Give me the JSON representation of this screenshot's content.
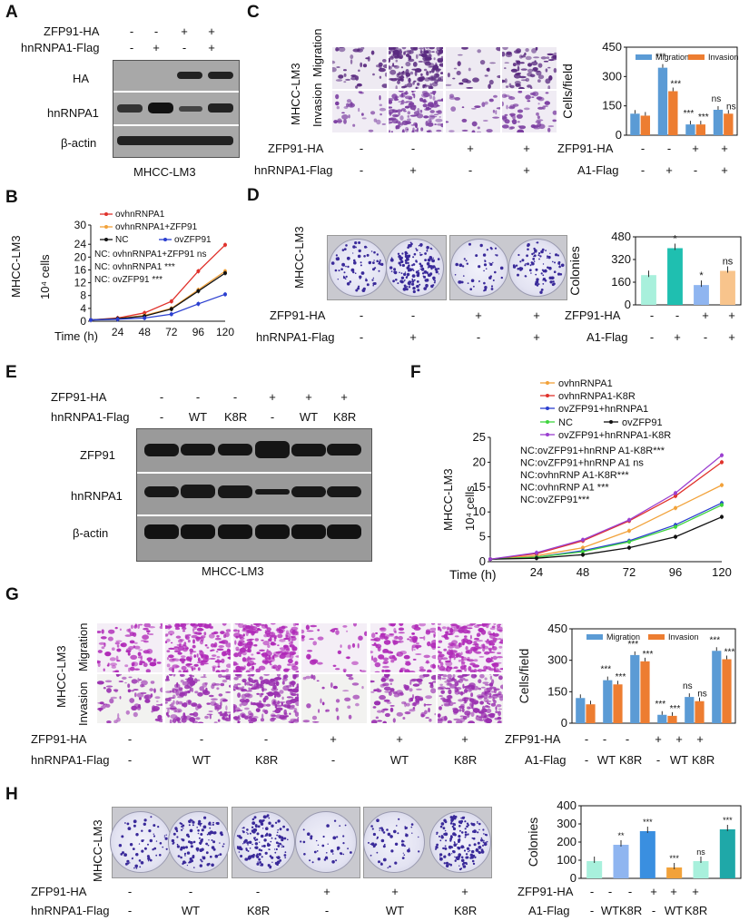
{
  "panels": {
    "A": {
      "label": "A",
      "rows": [
        "ZFP91-HA",
        "hnRNPA1-Flag"
      ],
      "zfp91_signs": [
        "-",
        "-",
        "+",
        "+"
      ],
      "a1_signs": [
        "-",
        "+",
        "-",
        "+"
      ],
      "bands": [
        "HA",
        "hnRNPA1",
        "β-actin"
      ],
      "cell_line": "MHCC-LM3"
    },
    "B": {
      "label": "B",
      "cell_line": "MHCC-LM3",
      "ylabel": "10⁴ cells",
      "xlabel_prefix": "Time (h)",
      "legend": [
        "ovhnRNPA1",
        "ovhnRNPA1+ZFP91",
        "NC",
        "ovZFP91"
      ],
      "stats": [
        "NC: ovhnRNPA1+ZFP91 ns",
        "NC: ovhnRNPA1 ***",
        "NC: ovZFP91 ***"
      ]
    },
    "C": {
      "label": "C",
      "cell_line": "MHCC-LM3",
      "row_labels": [
        "Migration",
        "Invasion"
      ],
      "rows": [
        "ZFP91-HA",
        "hnRNPA1-Flag"
      ],
      "zfp91_signs": [
        "-",
        "-",
        "+",
        "+"
      ],
      "a1_signs": [
        "-",
        "+",
        "-",
        "+"
      ],
      "chart_rows": [
        "ZFP91-HA",
        "A1-Flag"
      ],
      "chart_zfp91_signs": [
        "-",
        "-",
        "+",
        "+"
      ],
      "chart_a1_signs": [
        "-",
        "+",
        "-",
        "+"
      ]
    },
    "D": {
      "label": "D",
      "cell_line": "MHCC-LM3",
      "rows": [
        "ZFP91-HA",
        "hnRNPA1-Flag"
      ],
      "zfp91_signs": [
        "-",
        "-",
        "+",
        "+"
      ],
      "a1_signs": [
        "-",
        "+",
        "-",
        "+"
      ],
      "chart_rows": [
        "ZFP91-HA",
        "A1-Flag"
      ],
      "chart_zfp91_signs": [
        "-",
        "-",
        "+",
        "+"
      ],
      "chart_a1_signs": [
        "-",
        "+",
        "-",
        "+"
      ]
    },
    "E": {
      "label": "E",
      "rows": [
        "ZFP91-HA",
        "hnRNPA1-Flag"
      ],
      "zfp91_signs": [
        "-",
        "-",
        "-",
        "+",
        "+",
        "+"
      ],
      "a1_signs": [
        "-",
        "WT",
        "K8R",
        "-",
        "WT",
        "K8R"
      ],
      "bands": [
        "ZFP91",
        "hnRNPA1",
        "β-actin"
      ],
      "cell_line": "MHCC-LM3"
    },
    "F": {
      "label": "F",
      "cell_line": "MHCC-LM3",
      "ylabel": "10⁴ cells",
      "legend": [
        "ovhnRNPA1",
        "ovhnRNPA1-K8R",
        "ovZFP91+hnRNPA1",
        "NC",
        "ovZFP91",
        "ovZFP91+hnRNPA1-K8R"
      ],
      "stats": [
        "NC:ovZFP91+hnRNP A1-K8R***",
        "NC:ovZFP91+hnRNP A1 ns",
        "NC:ovhnRNP A1-K8R***",
        "NC:ovhnRNP A1 ***",
        "NC:ovZFP91***"
      ]
    },
    "G": {
      "label": "G",
      "cell_line": "MHCC-LM3",
      "row_labels": [
        "Migration",
        "Invasion"
      ],
      "rows": [
        "ZFP91-HA",
        "hnRNPA1-Flag"
      ],
      "zfp91_signs": [
        "-",
        "-",
        "-",
        "+",
        "+",
        "+"
      ],
      "a1_signs": [
        "-",
        "WT",
        "K8R",
        "-",
        "WT",
        "K8R"
      ],
      "chart_rows": [
        "ZFP91-HA",
        "A1-Flag"
      ],
      "chart_zfp91_signs": [
        "-",
        "-",
        "-",
        "+",
        "+",
        "+"
      ],
      "chart_a1_signs": [
        "-",
        "WT",
        "K8R",
        "-",
        "WT",
        "K8R"
      ]
    },
    "H": {
      "label": "H",
      "cell_line": "MHCC-LM3",
      "rows": [
        "ZFP91-HA",
        "hnRNPA1-Flag"
      ],
      "zfp91_signs": [
        "-",
        "-",
        "-",
        "+",
        "+",
        "+"
      ],
      "a1_signs": [
        "-",
        "WT",
        "K8R",
        "-",
        "WT",
        "K8R"
      ],
      "chart_rows": [
        "ZFP91-HA",
        "A1-Flag"
      ],
      "chart_zfp91_signs": [
        "-",
        "-",
        "-",
        "+",
        "+",
        "+"
      ],
      "chart_a1_signs": [
        "-",
        "WT",
        "K8R",
        "-",
        "WT",
        "K8R"
      ]
    }
  },
  "colors": {
    "red": "#e0322c",
    "orange": "#f2a23a",
    "black": "#111111",
    "blue": "#2b3fd0",
    "green": "#3fd43f",
    "purple": "#9b3fd0",
    "migration": "#5b9bd5",
    "invasion": "#ed7d31",
    "teal": "#1fbfb0",
    "mint": "#a8f0dc",
    "peach": "#f8c48c",
    "ltblue": "#8fb5f0"
  },
  "chart_data": [
    {
      "id": "B",
      "type": "line",
      "xlabel": "Time (h)",
      "ylabel": "10⁴ cells",
      "x": [
        0,
        24,
        48,
        72,
        96,
        120
      ],
      "xticks": [
        "24",
        "48",
        "72",
        "96",
        "120"
      ],
      "yticks": [
        "0",
        "4",
        "8",
        "12",
        "16",
        "20",
        "24",
        "30"
      ],
      "ylim": [
        0,
        30
      ],
      "series": [
        {
          "name": "ovhnRNPA1",
          "color": "#e0322c",
          "values": [
            0.4,
            1.0,
            2.6,
            6.2,
            15.6,
            23.8
          ]
        },
        {
          "name": "ovhnRNPA1+ZFP91",
          "color": "#f2a23a",
          "values": [
            0.4,
            0.8,
            1.8,
            4.0,
            9.8,
            15.6
          ]
        },
        {
          "name": "NC",
          "color": "#111111",
          "values": [
            0.4,
            0.8,
            1.6,
            3.8,
            9.4,
            15.0
          ]
        },
        {
          "name": "ovZFP91",
          "color": "#2b3fd0",
          "values": [
            0.4,
            0.6,
            1.0,
            2.2,
            5.4,
            8.4
          ]
        }
      ]
    },
    {
      "id": "C",
      "type": "bar",
      "ylabel": "Cells/field",
      "ylim": [
        0,
        450
      ],
      "yticks": [
        "0",
        "150",
        "300",
        "450"
      ],
      "legend": [
        "Migration",
        "Invasion"
      ],
      "categories": [
        "1",
        "2",
        "3",
        "4"
      ],
      "series": [
        {
          "name": "Migration",
          "color": "#5b9bd5",
          "values": [
            110,
            345,
            55,
            130
          ]
        },
        {
          "name": "Invasion",
          "color": "#ed7d31",
          "values": [
            100,
            225,
            55,
            110
          ]
        }
      ],
      "annotations": [
        [
          "",
          ""
        ],
        [
          "***",
          "***"
        ],
        [
          "***",
          "***"
        ],
        [
          "ns",
          "ns"
        ]
      ]
    },
    {
      "id": "D",
      "type": "bar",
      "ylabel": "Colonies",
      "ylim": [
        0,
        480
      ],
      "yticks": [
        "0",
        "160",
        "320",
        "480"
      ],
      "categories": [
        "1",
        "2",
        "3",
        "4"
      ],
      "colors": [
        "#a8f0dc",
        "#1fbfb0",
        "#8fb5f0",
        "#f8c48c"
      ],
      "values": [
        210,
        400,
        140,
        240
      ],
      "annotations": [
        "",
        "*",
        "*",
        "ns"
      ]
    },
    {
      "id": "F",
      "type": "line",
      "xlabel": "Time (h)",
      "ylabel": "10⁴ cells",
      "x": [
        0,
        24,
        48,
        72,
        96,
        120
      ],
      "xticks": [
        "0",
        "24",
        "48",
        "72",
        "96",
        "120"
      ],
      "yticks": [
        "0",
        "5",
        "10",
        "15",
        "20",
        "25"
      ],
      "ylim": [
        0,
        25
      ],
      "series": [
        {
          "name": "ovhnRNPA1",
          "color": "#f2a23a",
          "values": [
            0.5,
            1.2,
            2.8,
            6.2,
            10.8,
            15.4
          ]
        },
        {
          "name": "ovhnRNPA1-K8R",
          "color": "#e0322c",
          "values": [
            0.5,
            1.6,
            4.2,
            8.2,
            13.2,
            20.0
          ]
        },
        {
          "name": "ovZFP91+hnRNPA1",
          "color": "#2b3fd0",
          "values": [
            0.5,
            0.9,
            2.2,
            4.2,
            7.4,
            11.8
          ]
        },
        {
          "name": "NC",
          "color": "#3fd43f",
          "values": [
            0.5,
            0.9,
            2.0,
            4.0,
            7.0,
            11.4
          ]
        },
        {
          "name": "ovZFP91",
          "color": "#111111",
          "values": [
            0.5,
            0.7,
            1.4,
            2.8,
            5.0,
            9.0
          ]
        },
        {
          "name": "ovZFP91+hnRNPA1-K8R",
          "color": "#9b3fd0",
          "values": [
            0.5,
            1.8,
            4.4,
            8.4,
            13.8,
            21.4
          ]
        }
      ]
    },
    {
      "id": "G",
      "type": "bar",
      "ylabel": "Cells/field",
      "ylim": [
        0,
        450
      ],
      "yticks": [
        "0",
        "150",
        "300",
        "450"
      ],
      "legend": [
        "Migration",
        "Invasion"
      ],
      "categories": [
        "1",
        "2",
        "3",
        "4",
        "5",
        "6"
      ],
      "series": [
        {
          "name": "Migration",
          "color": "#5b9bd5",
          "values": [
            120,
            205,
            325,
            40,
            125,
            345
          ]
        },
        {
          "name": "Invasion",
          "color": "#ed7d31",
          "values": [
            90,
            185,
            295,
            35,
            105,
            305
          ]
        }
      ],
      "annotations": [
        [
          "",
          ""
        ],
        [
          "***",
          "***"
        ],
        [
          "***",
          "***"
        ],
        [
          "***",
          "***"
        ],
        [
          "ns",
          "ns"
        ],
        [
          "***",
          "***"
        ]
      ]
    },
    {
      "id": "H",
      "type": "bar",
      "ylabel": "Colonies",
      "ylim": [
        0,
        400
      ],
      "yticks": [
        "0",
        "100",
        "200",
        "300",
        "400"
      ],
      "categories": [
        "1",
        "2",
        "3",
        "4",
        "5",
        "6"
      ],
      "colors": [
        "#a8f0dc",
        "#8fb5f0",
        "#3a8fe0",
        "#f2a23a",
        "#a8f0dc",
        "#1fa8a8"
      ],
      "values": [
        95,
        185,
        260,
        60,
        95,
        270
      ],
      "annotations": [
        "",
        "**",
        "***",
        "***",
        "ns",
        "***"
      ]
    }
  ]
}
